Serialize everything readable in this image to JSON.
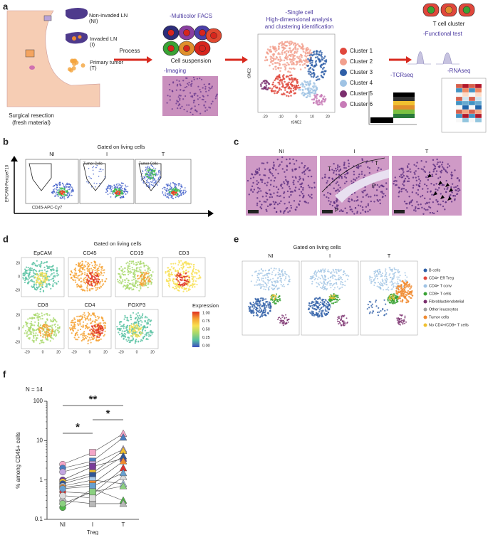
{
  "a": {
    "label": "a",
    "sites": [
      "Non-invaded LN",
      "(NI)",
      "Invaded LN",
      "(I)",
      "Primary tumor",
      "(T)"
    ],
    "resection": [
      "Surgical resection",
      "(fresh material)"
    ],
    "process": "Process",
    "facs": "-Multicolor FACS",
    "suspension": "Cell suspension",
    "imaging": "-Imaging",
    "single_cell": [
      "-Single cell",
      "High-dimensional analysis",
      "and clustering identification"
    ],
    "tsne_xlabel": "tSNE2",
    "tsne_ylabel": "tSNE2",
    "tsne_ticks": [
      "-20",
      "-10",
      "0",
      "10",
      "20"
    ],
    "clusters": [
      {
        "name": "Cluster 1",
        "color": "#e0473c"
      },
      {
        "name": "Cluster 2",
        "color": "#f2a08e"
      },
      {
        "name": "Cluster 3",
        "color": "#2f5fa7"
      },
      {
        "name": "Cluster 4",
        "color": "#9fc3e4"
      },
      {
        "name": "Cluster 5",
        "color": "#7b2f6e"
      },
      {
        "name": "Cluster 6",
        "color": "#c77bb7"
      }
    ],
    "t_cell": "T cell cluster",
    "functional": "-Functional test",
    "tcrseq": "-TCRseq",
    "rnaseq": "-RNAseq"
  },
  "b": {
    "label": "b",
    "title": "Gated on living cells",
    "plots": [
      "NI",
      "I",
      "T"
    ],
    "gate": "Tumor Cells",
    "ylabel": "EPCAM-Percpe710",
    "xlabel": "CD45-APC-Cy7"
  },
  "c": {
    "label": "c",
    "plots": [
      "NI",
      "I",
      "T"
    ],
    "marks": [
      "T",
      "P"
    ]
  },
  "d": {
    "label": "d",
    "title": "Gated on living cells",
    "markers": [
      "EpCAM",
      "CD45",
      "CD19",
      "CD3",
      "CD8",
      "CD4",
      "FOXP3"
    ],
    "axis_ticks": [
      "20",
      "0",
      "-20"
    ],
    "expression": "Expression",
    "expression_ticks": [
      "1.00",
      "0.75",
      "0.50",
      "0.25",
      "0.00"
    ]
  },
  "e": {
    "label": "e",
    "title": "Gated on living cells",
    "plots": [
      "NI",
      "I",
      "T"
    ],
    "legend": [
      {
        "name": "B cells",
        "color": "#2f5fa7"
      },
      {
        "name": "CD4+ Eff Treg",
        "color": "#e0473c"
      },
      {
        "name": "CD4+ T conv",
        "color": "#9fc3e4"
      },
      {
        "name": "CD8+ T cells",
        "color": "#3aa335"
      },
      {
        "name": "Fibroblast/endotelial",
        "color": "#7b2f6e"
      },
      {
        "name": "Other leucocytes",
        "color": "#a0a0a0"
      },
      {
        "name": "Tumor cells",
        "color": "#f08a30"
      },
      {
        "name": "No CD4+/CD8+ T cells",
        "color": "#f0c030"
      }
    ]
  },
  "chart_data": {
    "type": "line",
    "panel": "f",
    "n_label": "N = 14",
    "ylabel": "% among CD45+ cells",
    "xlabel": "Treg",
    "categories": [
      "NI",
      "I",
      "T"
    ],
    "ylim": [
      0.1,
      100
    ],
    "yticks": [
      0.1,
      1,
      10,
      100
    ],
    "log": true,
    "annotations": [
      "**",
      "*",
      "*"
    ],
    "series": [
      {
        "color": "#f4a6c8",
        "values": [
          2.5,
          5,
          15
        ]
      },
      {
        "color": "#4a7cc0",
        "values": [
          2.0,
          3.0,
          12
        ]
      },
      {
        "color": "#c3a6e0",
        "values": [
          1.6,
          2.5,
          6
        ]
      },
      {
        "color": "#7a3c9a",
        "values": [
          1.0,
          2.2,
          3.5
        ]
      },
      {
        "color": "#f0c030",
        "values": [
          0.9,
          1.5,
          5.5
        ]
      },
      {
        "color": "#2f5597",
        "values": [
          0.8,
          1.3,
          4
        ]
      },
      {
        "color": "#a8c8e8",
        "values": [
          0.7,
          1.0,
          0.8
        ]
      },
      {
        "color": "#f08a30",
        "values": [
          0.65,
          0.8,
          3
        ]
      },
      {
        "color": "#e03030",
        "values": [
          0.5,
          0.45,
          2
        ]
      },
      {
        "color": "#50b848",
        "values": [
          0.2,
          0.6,
          0.3
        ]
      },
      {
        "color": "#b8b8b8",
        "values": [
          0.3,
          0.25,
          0.25
        ]
      },
      {
        "color": "#dcdcdc",
        "values": [
          0.4,
          0.35,
          1.2
        ]
      },
      {
        "color": "#68a0d0",
        "values": [
          0.6,
          0.7,
          1.5
        ]
      },
      {
        "color": "#8bd080",
        "values": [
          0.25,
          0.5,
          0.7
        ]
      }
    ]
  }
}
